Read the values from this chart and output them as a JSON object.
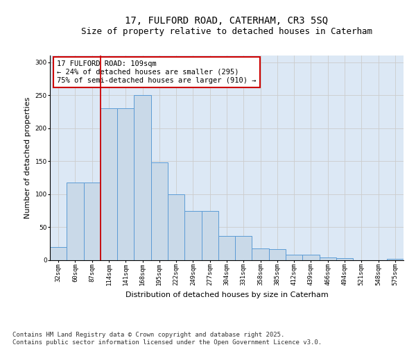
{
  "title": "17, FULFORD ROAD, CATERHAM, CR3 5SQ",
  "subtitle": "Size of property relative to detached houses in Caterham",
  "xlabel": "Distribution of detached houses by size in Caterham",
  "ylabel": "Number of detached properties",
  "categories": [
    "32sqm",
    "60sqm",
    "87sqm",
    "114sqm",
    "141sqm",
    "168sqm",
    "195sqm",
    "222sqm",
    "249sqm",
    "277sqm",
    "304sqm",
    "331sqm",
    "358sqm",
    "385sqm",
    "412sqm",
    "439sqm",
    "466sqm",
    "494sqm",
    "521sqm",
    "548sqm",
    "575sqm"
  ],
  "values": [
    20,
    118,
    118,
    230,
    230,
    250,
    148,
    100,
    75,
    75,
    37,
    37,
    18,
    17,
    8,
    8,
    4,
    3,
    0,
    0,
    2
  ],
  "bar_color": "#c9d9e8",
  "bar_edge_color": "#5b9bd5",
  "grid_color": "#cccccc",
  "bg_color": "#dce8f5",
  "vline_x_idx": 2.5,
  "vline_color": "#cc0000",
  "annotation_text": "17 FULFORD ROAD: 109sqm\n← 24% of detached houses are smaller (295)\n75% of semi-detached houses are larger (910) →",
  "annotation_box_color": "#cc0000",
  "ylim": [
    0,
    310
  ],
  "yticks": [
    0,
    50,
    100,
    150,
    200,
    250,
    300
  ],
  "footer": "Contains HM Land Registry data © Crown copyright and database right 2025.\nContains public sector information licensed under the Open Government Licence v3.0.",
  "title_fontsize": 10,
  "subtitle_fontsize": 9,
  "xlabel_fontsize": 8,
  "ylabel_fontsize": 8,
  "tick_fontsize": 6.5,
  "footer_fontsize": 6.5,
  "ann_fontsize": 7.5
}
